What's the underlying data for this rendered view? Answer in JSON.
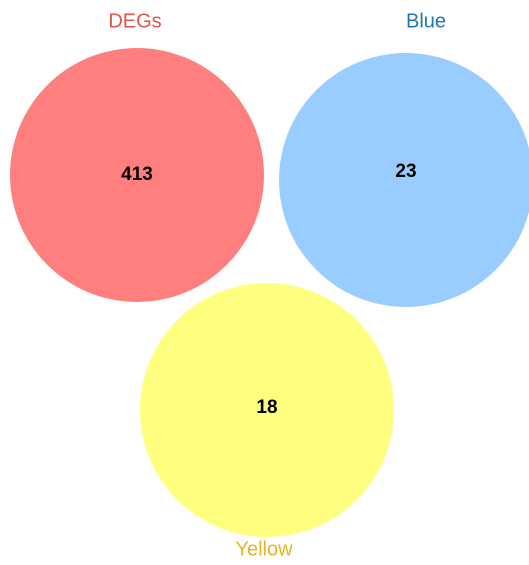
{
  "chart_data": {
    "type": "venn",
    "sets": [
      {
        "name": "DEGs",
        "value": 413,
        "color": "#ff7f7f",
        "label_color": "#e0574a"
      },
      {
        "name": "Blue",
        "value": 23,
        "color": "#99ccff",
        "label_color": "#1f78b4"
      },
      {
        "name": "Yellow",
        "value": 18,
        "color": "#ffff7f",
        "label_color": "#e6b422"
      }
    ]
  }
}
